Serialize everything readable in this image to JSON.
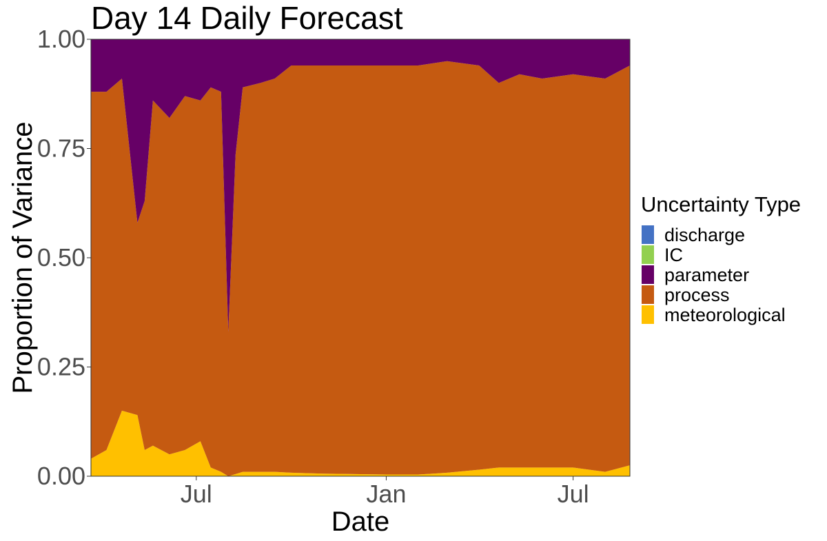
{
  "chart_data": {
    "type": "area",
    "stacked": true,
    "normalized": true,
    "title": "Day 14 Daily Forecast",
    "xlabel": "Date",
    "ylabel": "Proportion of Variance",
    "ylim": [
      0,
      1
    ],
    "y_ticks": [
      {
        "value": 0.0,
        "label": "0.00"
      },
      {
        "value": 0.25,
        "label": "0.25"
      },
      {
        "value": 0.5,
        "label": "0.50"
      },
      {
        "value": 0.75,
        "label": "0.75"
      },
      {
        "value": 1.0,
        "label": "1.00"
      }
    ],
    "xlim": [
      "2020-03-21",
      "2021-08-25"
    ],
    "x_ticks": [
      {
        "value": "2020-07-01",
        "label": "Jul"
      },
      {
        "value": "2021-01-01",
        "label": "Jan"
      },
      {
        "value": "2021-07-01",
        "label": "Jul"
      }
    ],
    "grid": false,
    "legend": {
      "title": "Uncertainty Type",
      "position": "right",
      "order": [
        "discharge",
        "IC",
        "parameter",
        "process",
        "meteorological"
      ]
    },
    "colors": {
      "discharge": "#4472c4",
      "IC": "#92d050",
      "parameter": "#660066",
      "process": "#c55a11",
      "meteorological": "#ffc000"
    },
    "stack_order_bottom_to_top": [
      "meteorological",
      "process",
      "parameter",
      "IC",
      "discharge"
    ],
    "x": [
      "2020-03-21",
      "2020-04-05",
      "2020-04-20",
      "2020-05-05",
      "2020-05-12",
      "2020-05-20",
      "2020-06-05",
      "2020-06-20",
      "2020-07-05",
      "2020-07-15",
      "2020-07-25",
      "2020-08-01",
      "2020-08-08",
      "2020-08-15",
      "2020-09-01",
      "2020-09-15",
      "2020-10-01",
      "2020-11-01",
      "2020-12-01",
      "2021-01-01",
      "2021-02-01",
      "2021-03-01",
      "2021-04-01",
      "2021-04-20",
      "2021-05-10",
      "2021-06-01",
      "2021-07-01",
      "2021-08-01",
      "2021-08-25"
    ],
    "series": [
      {
        "name": "meteorological",
        "values": [
          0.04,
          0.06,
          0.15,
          0.14,
          0.06,
          0.07,
          0.05,
          0.06,
          0.08,
          0.02,
          0.01,
          0.0,
          0.005,
          0.01,
          0.01,
          0.01,
          0.008,
          0.006,
          0.005,
          0.004,
          0.004,
          0.008,
          0.015,
          0.02,
          0.02,
          0.02,
          0.02,
          0.01,
          0.025
        ]
      },
      {
        "name": "process",
        "values": [
          0.84,
          0.82,
          0.76,
          0.44,
          0.57,
          0.79,
          0.77,
          0.81,
          0.78,
          0.87,
          0.87,
          0.33,
          0.73,
          0.88,
          0.89,
          0.9,
          0.932,
          0.934,
          0.935,
          0.936,
          0.936,
          0.942,
          0.925,
          0.88,
          0.9,
          0.89,
          0.9,
          0.9,
          0.915
        ]
      },
      {
        "name": "parameter",
        "values": [
          0.12,
          0.12,
          0.09,
          0.42,
          0.37,
          0.14,
          0.18,
          0.13,
          0.14,
          0.11,
          0.12,
          0.67,
          0.265,
          0.11,
          0.1,
          0.09,
          0.06,
          0.06,
          0.06,
          0.06,
          0.06,
          0.05,
          0.06,
          0.1,
          0.08,
          0.09,
          0.08,
          0.09,
          0.06
        ]
      },
      {
        "name": "IC",
        "values": [
          0,
          0,
          0,
          0,
          0,
          0,
          0,
          0,
          0,
          0,
          0,
          0,
          0,
          0,
          0,
          0,
          0,
          0,
          0,
          0,
          0,
          0,
          0,
          0,
          0,
          0,
          0,
          0,
          0
        ]
      },
      {
        "name": "discharge",
        "values": [
          0,
          0,
          0,
          0,
          0,
          0,
          0,
          0,
          0,
          0,
          0,
          0,
          0,
          0,
          0,
          0,
          0,
          0,
          0,
          0,
          0,
          0,
          0,
          0,
          0,
          0,
          0,
          0,
          0
        ]
      }
    ]
  }
}
